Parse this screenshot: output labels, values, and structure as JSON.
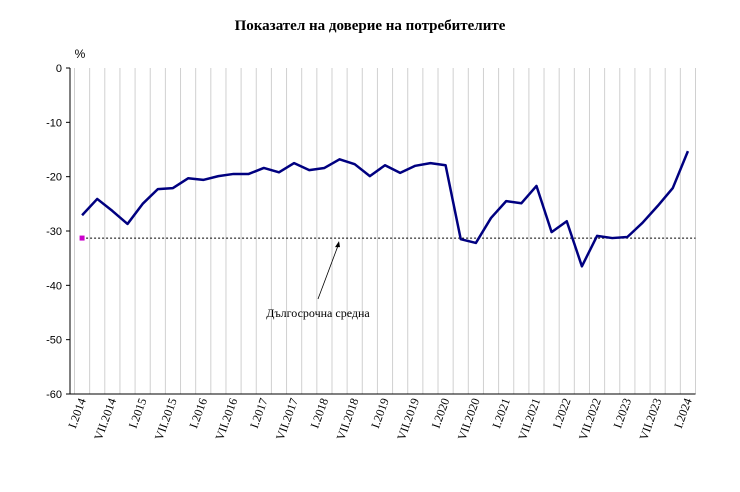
{
  "chart_data": {
    "type": "line",
    "title": "Показател на доверие на потребителите",
    "y_label": "%",
    "categories": [
      "I.2014",
      null,
      "VII.2014",
      null,
      "I.2015",
      null,
      "VII.2015",
      null,
      "I.2016",
      null,
      "VII.2016",
      null,
      "I.2017",
      null,
      "VII.2017",
      null,
      "I.2018",
      null,
      "VII.2018",
      null,
      "I.2019",
      null,
      "VII.2019",
      null,
      "I.2020",
      null,
      "VII.2020",
      null,
      "I.2021",
      null,
      "VII.2021",
      null,
      "I.2022",
      null,
      "VII.2022",
      null,
      "I.2023",
      null,
      "VII.2023",
      null,
      "I.2024"
    ],
    "values": [
      -27.1,
      -24.1,
      -26.3,
      -28.7,
      -25.0,
      -22.3,
      -22.1,
      -20.3,
      -20.6,
      -19.9,
      -19.5,
      -19.5,
      -18.4,
      -19.2,
      -17.5,
      -18.8,
      -18.4,
      -16.8,
      -17.7,
      -19.9,
      -17.9,
      -19.3,
      -18.0,
      -17.5,
      -17.9,
      -31.5,
      -32.2,
      -27.6,
      -24.5,
      -24.9,
      -21.7,
      -30.2,
      -28.2,
      -36.5,
      -30.9,
      -31.3,
      -31.1,
      -28.5,
      -25.4,
      -22.1,
      -15.3
    ],
    "color": "#000080",
    "reference_line": {
      "value": -31.3,
      "label": "Дългосрочна средна",
      "color": "#000000",
      "marker_color": "#cc00cc"
    },
    "ylim": [
      -60,
      0
    ],
    "yticks": [
      0,
      -10,
      -20,
      -30,
      -40,
      -50,
      -60
    ],
    "grid": true
  }
}
